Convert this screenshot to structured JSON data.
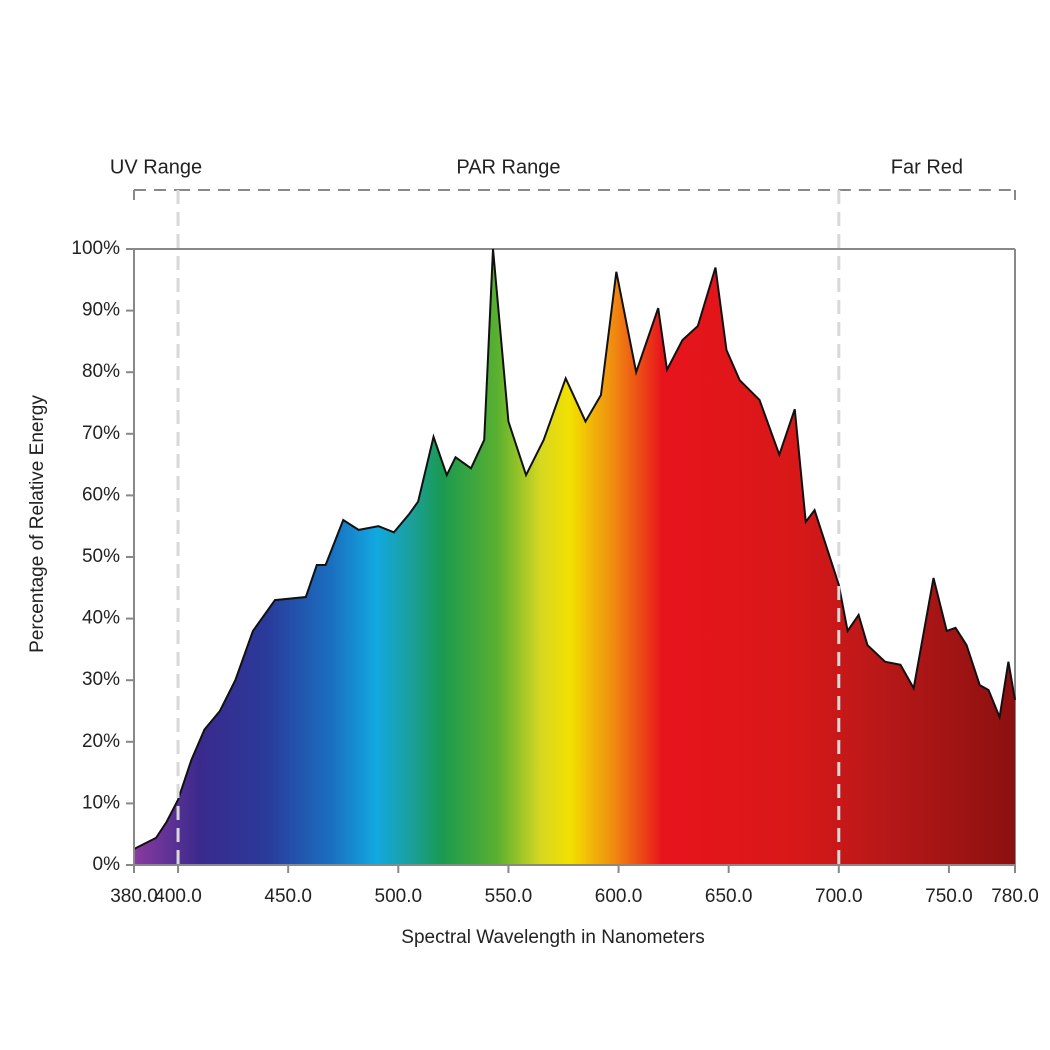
{
  "chart_data": {
    "type": "area",
    "x_label": "Spectral Wavelength in Nanometers",
    "y_label": "Percentage of Relative Energy",
    "x": [
      380,
      390,
      394.8,
      400,
      406,
      412,
      419,
      426,
      434,
      444,
      458,
      463,
      467,
      475,
      482,
      491,
      498,
      505,
      509,
      516,
      522,
      526,
      533,
      539,
      543,
      550,
      558,
      566,
      576,
      585,
      592,
      599,
      608,
      618,
      622,
      629,
      636,
      644,
      649,
      655,
      664,
      673,
      680,
      685,
      689,
      700,
      704,
      709,
      713,
      721,
      728,
      734,
      743,
      749,
      753,
      758,
      764,
      768,
      773,
      777,
      780
    ],
    "values": [
      2.6,
      4.4,
      7,
      10.6,
      17,
      22,
      25,
      30,
      38,
      43,
      43.5,
      48.7,
      48.7,
      56,
      54.4,
      55,
      54,
      57,
      59,
      69.5,
      63.3,
      66.2,
      64.4,
      69,
      100,
      72,
      63.3,
      69,
      79,
      72,
      76.3,
      96.3,
      80,
      90.4,
      80.4,
      85.2,
      87.5,
      97,
      83.6,
      78.7,
      75.5,
      66.6,
      74,
      55.7,
      57.6,
      45.5,
      38,
      40.6,
      35.7,
      33,
      32.5,
      28.7,
      46.6,
      38,
      38.5,
      35.7,
      29.2,
      28.4,
      24,
      33,
      26.8
    ],
    "xlim": [
      380,
      780
    ],
    "ylim": [
      0,
      100
    ],
    "xticks": [
      {
        "value": 380,
        "label": "380.0"
      },
      {
        "value": 400,
        "label": "400.0"
      },
      {
        "value": 450,
        "label": "450.0"
      },
      {
        "value": 500,
        "label": "500.0"
      },
      {
        "value": 550,
        "label": "550.0"
      },
      {
        "value": 600,
        "label": "600.0"
      },
      {
        "value": 650,
        "label": "650.0"
      },
      {
        "value": 700,
        "label": "700.0"
      },
      {
        "value": 750,
        "label": "750.0"
      },
      {
        "value": 780,
        "label": "780.0"
      }
    ],
    "yticks": [
      {
        "value": 0,
        "label": "0%"
      },
      {
        "value": 10,
        "label": "10%"
      },
      {
        "value": 20,
        "label": "20%"
      },
      {
        "value": 30,
        "label": "30%"
      },
      {
        "value": 40,
        "label": "40%"
      },
      {
        "value": 50,
        "label": "50%"
      },
      {
        "value": 60,
        "label": "60%"
      },
      {
        "value": 70,
        "label": "70%"
      },
      {
        "value": 80,
        "label": "80%"
      },
      {
        "value": 90,
        "label": "90%"
      },
      {
        "value": 100,
        "label": "100%"
      }
    ],
    "regions": [
      {
        "label": "UV Range",
        "start": 380,
        "end": 400
      },
      {
        "label": "PAR Range",
        "start": 400,
        "end": 700
      },
      {
        "label": "Far Red",
        "start": 700,
        "end": 780
      }
    ],
    "gradient": [
      {
        "x": 380,
        "color": "#8a3aa0"
      },
      {
        "x": 410,
        "color": "#3a2a8c"
      },
      {
        "x": 440,
        "color": "#2a3a9a"
      },
      {
        "x": 470,
        "color": "#1a70c0"
      },
      {
        "x": 490,
        "color": "#12a8e0"
      },
      {
        "x": 505,
        "color": "#1aa0a0"
      },
      {
        "x": 520,
        "color": "#1a9a50"
      },
      {
        "x": 545,
        "color": "#5ab030"
      },
      {
        "x": 565,
        "color": "#d8d820"
      },
      {
        "x": 578,
        "color": "#f2e000"
      },
      {
        "x": 598,
        "color": "#f08a10"
      },
      {
        "x": 620,
        "color": "#e8141c"
      },
      {
        "x": 680,
        "color": "#d81818"
      },
      {
        "x": 720,
        "color": "#b81818"
      },
      {
        "x": 780,
        "color": "#8c1010"
      }
    ],
    "line_color": "#111111",
    "frame_color": "#888888"
  }
}
